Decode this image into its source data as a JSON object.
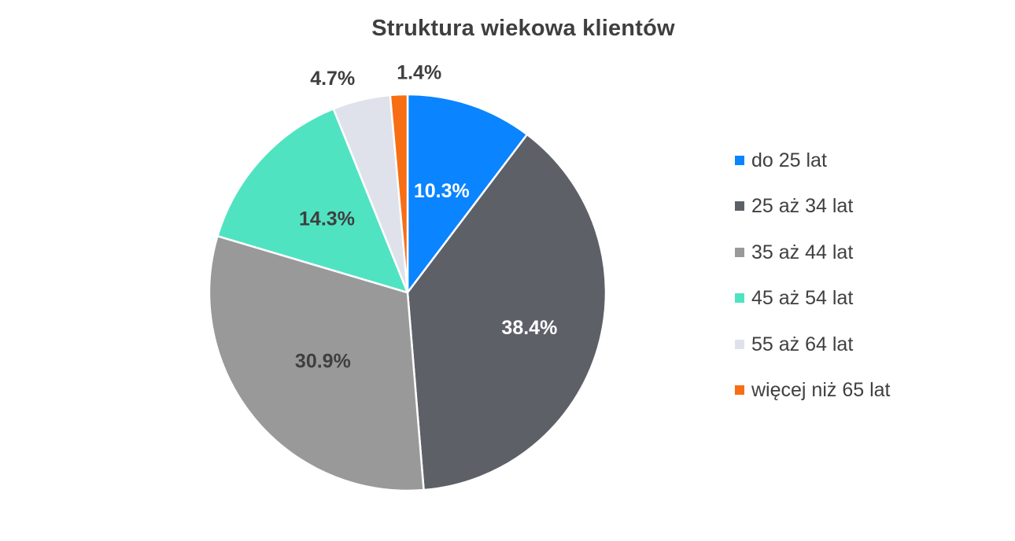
{
  "chart_data": {
    "type": "pie",
    "title": "Struktura wiekowa klientów",
    "categories": [
      "do 25 lat",
      "25 aż 34 lat",
      "35 aż 44 lat",
      "45 aż 54 lat",
      "55 aż 64 lat",
      "więcej niż 65 lat"
    ],
    "values": [
      10.3,
      38.4,
      30.9,
      14.3,
      4.7,
      1.4
    ],
    "labels": [
      "10.3%",
      "38.4%",
      "30.9%",
      "14.3%",
      "4.7%",
      "1.4%"
    ],
    "colors": [
      "#0a84ff",
      "#5e6068",
      "#999999",
      "#50e3c2",
      "#dfe2ea",
      "#f76e14"
    ],
    "label_colors": [
      "#ffffff",
      "#ffffff",
      "#3f3f3f",
      "#3f3f3f",
      "#3f3f3f",
      "#3f3f3f"
    ],
    "legend_position": "right",
    "start_angle_deg": 0,
    "direction": "clockwise"
  }
}
